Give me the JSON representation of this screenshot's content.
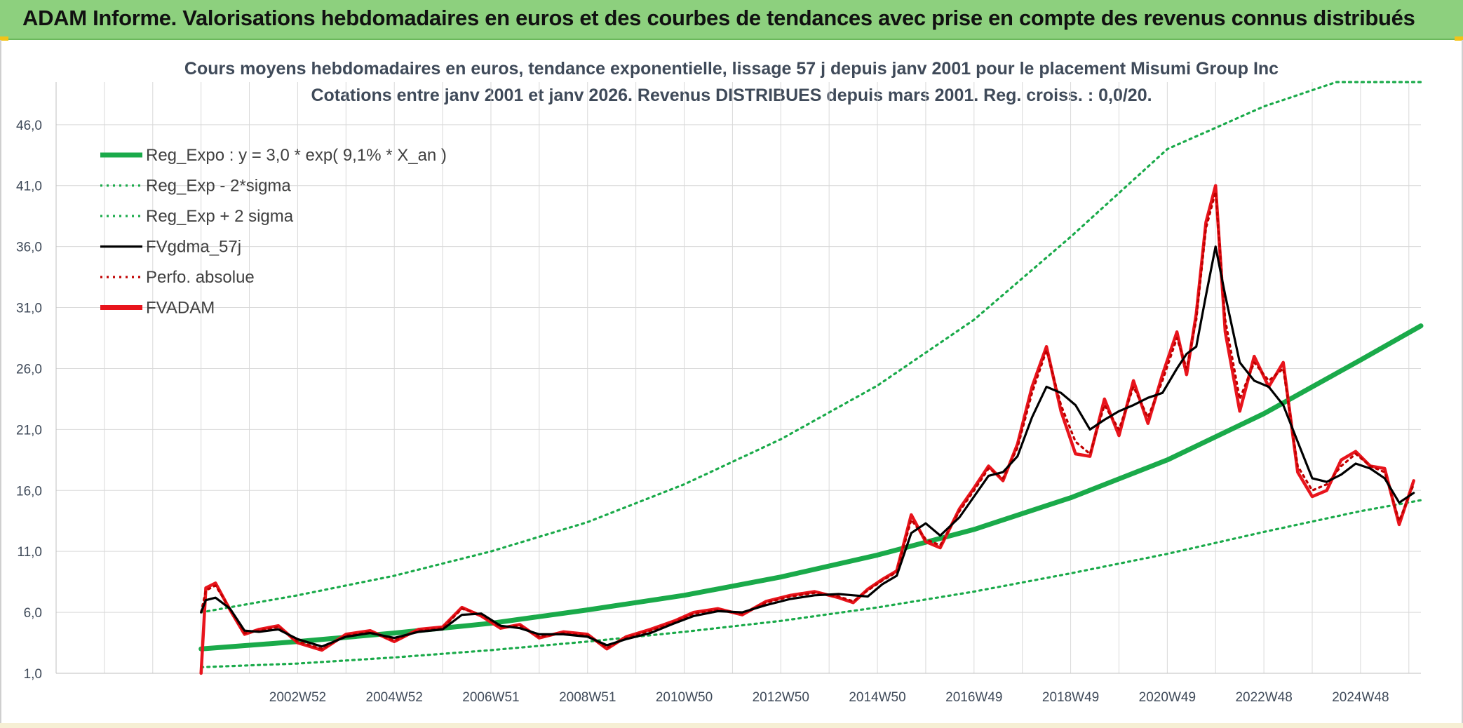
{
  "banner": {
    "title": "ADAM Informe. Valorisations hebdomadaires en euros et des courbes de tendances avec prise en compte des revenus connus distribués"
  },
  "colors": {
    "banner": "#8dd07e",
    "trend": "#1aaa4a",
    "band": "#1aaa4a",
    "smooth": "#000000",
    "perfo": "#c00000",
    "price": "#e8141c",
    "grid": "#d9d9d9",
    "text": "#3f4a59"
  },
  "chart_data": {
    "type": "line",
    "title": "Cours moyens hebdomadaires en euros, tendance exponentielle, lissage 57 j depuis janv 2001 pour le placement Misumi Group Inc",
    "subtitle": "Cotations entre janv 2001 et janv 2026. Revenus DISTRIBUES depuis mars 2001. Reg. croiss. : 0,0/20.",
    "xlabel": "",
    "ylabel": "",
    "x_range": [
      1998.0,
      2026.25
    ],
    "ylim": [
      1.0,
      49.5
    ],
    "y_ticks": [
      "1,0",
      "6,0",
      "11,0",
      "16,0",
      "21,0",
      "26,0",
      "31,0",
      "36,0",
      "41,0",
      "46,0"
    ],
    "y_tick_values": [
      1,
      6,
      11,
      16,
      21,
      26,
      31,
      36,
      41,
      46
    ],
    "x_tick_labels": [
      "2002W52",
      "2004W52",
      "2006W51",
      "2008W51",
      "2010W50",
      "2012W50",
      "2014W50",
      "2016W49",
      "2018W49",
      "2020W49",
      "2022W48",
      "2024W48"
    ],
    "x_tick_values": [
      2003.0,
      2005.0,
      2007.0,
      2009.0,
      2011.0,
      2013.0,
      2015.0,
      2017.0,
      2019.0,
      2021.0,
      2023.0,
      2025.0
    ],
    "grid": true,
    "legend_position": "top-left",
    "legend": [
      {
        "label": "Reg_Expo : y = 3,0 * exp( 9,1% *  X_an )",
        "style": "solid-thick",
        "color": "#1aaa4a"
      },
      {
        "label": "Reg_Exp - 2*sigma",
        "style": "dotted",
        "color": "#1aaa4a"
      },
      {
        "label": "Reg_Exp + 2 sigma",
        "style": "dotted",
        "color": "#1aaa4a"
      },
      {
        "label": "FVgdma_57j",
        "style": "solid",
        "color": "#000000"
      },
      {
        "label": "Perfo. absolue",
        "style": "dotted",
        "color": "#c00000"
      },
      {
        "label": "FVADAM",
        "style": "solid-thick",
        "color": "#e8141c"
      }
    ],
    "series": [
      {
        "name": "Reg_Expo : y = 3,0 * exp( 9,1% *  X_an )",
        "x": [
          2001.0,
          2003.0,
          2005.0,
          2007.0,
          2009.0,
          2011.0,
          2013.0,
          2015.0,
          2017.0,
          2019.0,
          2021.0,
          2023.0,
          2025.0,
          2026.25
        ],
        "values": [
          3.0,
          3.6,
          4.3,
          5.1,
          6.2,
          7.4,
          8.9,
          10.7,
          12.8,
          15.4,
          18.5,
          22.3,
          26.7,
          29.5
        ]
      },
      {
        "name": "Reg_Exp - 2*sigma",
        "x": [
          2001.0,
          2003.0,
          2005.0,
          2007.0,
          2009.0,
          2011.0,
          2013.0,
          2015.0,
          2017.0,
          2019.0,
          2021.0,
          2023.0,
          2025.0,
          2026.25
        ],
        "values": [
          1.5,
          1.8,
          2.3,
          2.9,
          3.6,
          4.4,
          5.3,
          6.4,
          7.7,
          9.2,
          10.8,
          12.6,
          14.3,
          15.2
        ]
      },
      {
        "name": "Reg_Exp + 2 sigma",
        "x": [
          2001.0,
          2003.0,
          2005.0,
          2007.0,
          2009.0,
          2011.0,
          2013.0,
          2015.0,
          2017.0,
          2019.0,
          2021.0,
          2023.0,
          2024.5,
          2026.25
        ],
        "values": [
          6.0,
          7.4,
          9.0,
          11.0,
          13.4,
          16.5,
          20.2,
          24.6,
          30.0,
          36.8,
          44.0,
          47.5,
          49.5,
          49.5
        ]
      },
      {
        "name": "FVgdma_57j",
        "x": [
          2001.0,
          2001.1,
          2001.3,
          2001.6,
          2001.9,
          2002.2,
          2002.6,
          2003.0,
          2003.5,
          2004.0,
          2004.5,
          2005.0,
          2005.5,
          2006.0,
          2006.4,
          2006.8,
          2007.2,
          2007.6,
          2008.0,
          2008.5,
          2009.0,
          2009.4,
          2009.8,
          2010.3,
          2010.8,
          2011.2,
          2011.7,
          2012.2,
          2012.7,
          2013.2,
          2013.7,
          2014.2,
          2014.5,
          2014.8,
          2015.1,
          2015.4,
          2015.7,
          2016.0,
          2016.3,
          2016.7,
          2017.0,
          2017.3,
          2017.6,
          2017.9,
          2018.2,
          2018.5,
          2018.8,
          2019.1,
          2019.4,
          2019.7,
          2020.0,
          2020.3,
          2020.6,
          2020.9,
          2021.2,
          2021.4,
          2021.6,
          2021.8,
          2022.0,
          2022.2,
          2022.5,
          2022.8,
          2023.1,
          2023.4,
          2023.7,
          2024.0,
          2024.3,
          2024.6,
          2024.9,
          2025.2,
          2025.5,
          2025.8,
          2026.1
        ],
        "values": [
          6.0,
          7.0,
          7.2,
          6.3,
          4.5,
          4.4,
          4.6,
          3.8,
          3.2,
          4.0,
          4.3,
          3.9,
          4.4,
          4.6,
          5.8,
          5.9,
          4.9,
          4.7,
          4.2,
          4.2,
          4.0,
          3.3,
          3.8,
          4.3,
          5.1,
          5.7,
          6.1,
          6.0,
          6.6,
          7.1,
          7.4,
          7.5,
          7.4,
          7.3,
          8.3,
          9.0,
          12.5,
          13.3,
          12.3,
          13.8,
          15.5,
          17.2,
          17.5,
          18.8,
          22.0,
          24.5,
          24.0,
          23.0,
          21.0,
          21.8,
          22.5,
          23.0,
          23.6,
          24.0,
          26.0,
          27.2,
          27.8,
          32.0,
          36.0,
          32.0,
          26.5,
          25.0,
          24.5,
          23.0,
          20.0,
          17.0,
          16.7,
          17.3,
          18.2,
          17.8,
          17.0,
          15.0,
          15.8
        ]
      },
      {
        "name": "Perfo. absolue",
        "x": [
          2001.0,
          2001.1,
          2001.3,
          2001.6,
          2001.9,
          2002.2,
          2002.6,
          2003.0,
          2003.5,
          2004.0,
          2004.5,
          2005.0,
          2005.5,
          2006.0,
          2006.4,
          2006.8,
          2007.2,
          2007.6,
          2008.0,
          2008.5,
          2009.0,
          2009.4,
          2009.8,
          2010.3,
          2010.8,
          2011.2,
          2011.7,
          2012.2,
          2012.7,
          2013.2,
          2013.7,
          2014.2,
          2014.5,
          2014.8,
          2015.1,
          2015.4,
          2015.7,
          2016.0,
          2016.3,
          2016.7,
          2017.0,
          2017.3,
          2017.6,
          2017.9,
          2018.2,
          2018.5,
          2018.8,
          2019.1,
          2019.4,
          2019.7,
          2020.0,
          2020.3,
          2020.6,
          2020.9,
          2021.2,
          2021.4,
          2021.6,
          2021.8,
          2022.0,
          2022.2,
          2022.5,
          2022.8,
          2023.1,
          2023.4,
          2023.7,
          2024.0,
          2024.3,
          2024.6,
          2024.9,
          2025.2,
          2025.5,
          2025.8,
          2026.1
        ],
        "values": [
          6.0,
          7.8,
          8.2,
          6.3,
          4.3,
          4.5,
          4.8,
          3.6,
          3.0,
          4.1,
          4.4,
          3.7,
          4.5,
          4.7,
          6.3,
          5.8,
          4.8,
          4.9,
          4.0,
          4.3,
          4.1,
          3.1,
          3.9,
          4.5,
          5.2,
          5.9,
          6.2,
          5.9,
          6.8,
          7.3,
          7.6,
          7.3,
          6.9,
          7.8,
          8.6,
          9.3,
          13.6,
          12.0,
          11.5,
          14.3,
          16.0,
          17.8,
          17.0,
          19.5,
          24.0,
          27.5,
          23.0,
          20.0,
          19.0,
          23.0,
          21.0,
          24.5,
          22.0,
          25.0,
          28.5,
          26.0,
          30.0,
          37.5,
          40.5,
          30.0,
          23.5,
          26.5,
          25.0,
          26.0,
          18.0,
          16.0,
          16.5,
          18.0,
          19.0,
          18.0,
          17.5,
          13.5,
          16.5
        ]
      },
      {
        "name": "FVADAM",
        "x": [
          2001.0,
          2001.1,
          2001.3,
          2001.6,
          2001.9,
          2002.2,
          2002.6,
          2003.0,
          2003.5,
          2004.0,
          2004.5,
          2005.0,
          2005.5,
          2006.0,
          2006.4,
          2006.8,
          2007.2,
          2007.6,
          2008.0,
          2008.5,
          2009.0,
          2009.4,
          2009.8,
          2010.3,
          2010.8,
          2011.2,
          2011.7,
          2012.2,
          2012.7,
          2013.2,
          2013.7,
          2014.2,
          2014.5,
          2014.8,
          2015.1,
          2015.4,
          2015.7,
          2016.0,
          2016.3,
          2016.7,
          2017.0,
          2017.3,
          2017.6,
          2017.9,
          2018.2,
          2018.5,
          2018.8,
          2019.1,
          2019.4,
          2019.7,
          2020.0,
          2020.3,
          2020.6,
          2020.9,
          2021.2,
          2021.4,
          2021.6,
          2021.8,
          2022.0,
          2022.2,
          2022.5,
          2022.8,
          2023.1,
          2023.4,
          2023.7,
          2024.0,
          2024.3,
          2024.6,
          2024.9,
          2025.2,
          2025.5,
          2025.8,
          2026.1
        ],
        "values": [
          1.0,
          8.0,
          8.4,
          6.2,
          4.2,
          4.6,
          4.9,
          3.5,
          2.9,
          4.2,
          4.5,
          3.6,
          4.6,
          4.8,
          6.4,
          5.7,
          4.7,
          5.0,
          3.9,
          4.4,
          4.2,
          3.0,
          4.0,
          4.6,
          5.3,
          6.0,
          6.3,
          5.8,
          6.9,
          7.4,
          7.7,
          7.2,
          6.8,
          7.9,
          8.7,
          9.4,
          14.0,
          11.8,
          11.3,
          14.5,
          16.2,
          18.0,
          16.8,
          19.8,
          24.5,
          27.8,
          22.5,
          19.0,
          18.8,
          23.5,
          20.5,
          25.0,
          21.5,
          25.5,
          29.0,
          25.5,
          30.5,
          38.0,
          41.0,
          29.0,
          22.5,
          27.0,
          24.5,
          26.5,
          17.5,
          15.5,
          16.0,
          18.5,
          19.2,
          18.0,
          17.8,
          13.2,
          16.8
        ]
      }
    ]
  }
}
